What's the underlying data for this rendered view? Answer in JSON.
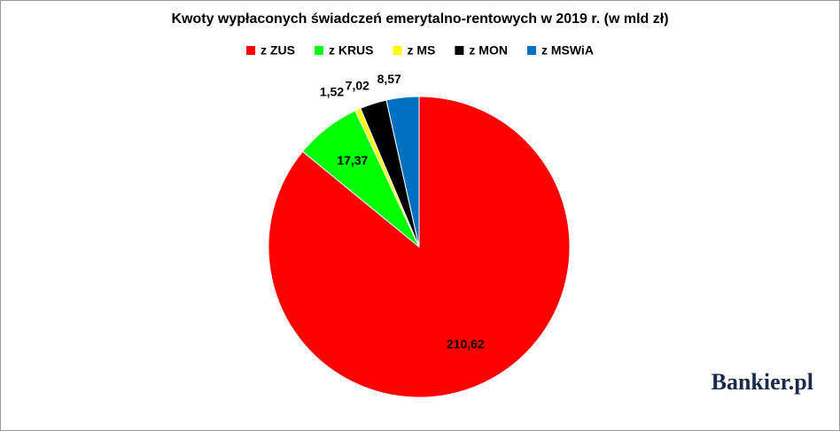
{
  "chart_data": {
    "type": "pie",
    "title": "Kwoty wypłaconych świadczeń emerytalno-rentowych w 2019 r. (w mld zł)",
    "categories": [
      "z ZUS",
      "z KRUS",
      "z MS",
      "z MON",
      "z MSWiA"
    ],
    "values": [
      210.62,
      17.37,
      1.52,
      7.02,
      8.57
    ],
    "value_labels": [
      "210,62",
      "17,37",
      "1,52",
      "7,02",
      "8,57"
    ],
    "colors": [
      "#ff0000",
      "#00ff00",
      "#ffff00",
      "#000000",
      "#0070c0"
    ],
    "legend": "top",
    "watermark": "Bankier.pl"
  }
}
